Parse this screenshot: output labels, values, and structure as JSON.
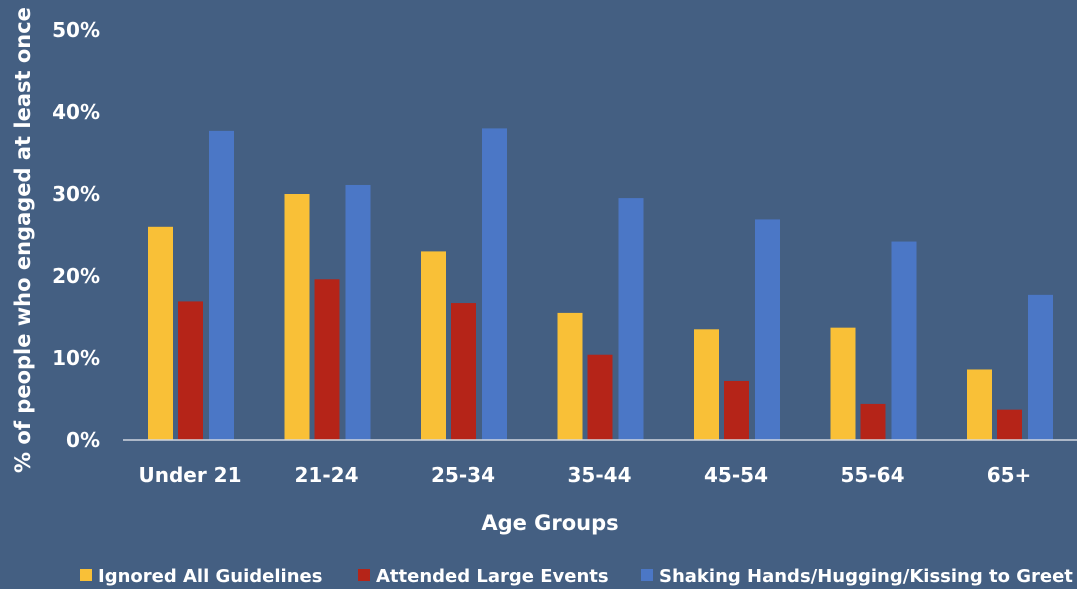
{
  "chart_data": {
    "type": "bar",
    "title": "",
    "xlabel": "Age Groups",
    "ylabel": "% of people who engaged at least once",
    "categories": [
      "Under 21",
      "21-24",
      "25-34",
      "35-44",
      "45-54",
      "55-64",
      "65+"
    ],
    "ylim": [
      0,
      50
    ],
    "yticks": [
      "0%",
      "10%",
      "20%",
      "30%",
      "40%",
      "50%"
    ],
    "grid": false,
    "legend_position": "bottom",
    "series": [
      {
        "name": "Ignored All Guidelines",
        "color": "#f9c037",
        "values": [
          26,
          30,
          23,
          15.5,
          13.5,
          13.7,
          8.6
        ]
      },
      {
        "name": "Attended Large Events",
        "color": "#b52418",
        "values": [
          16.9,
          19.6,
          16.7,
          10.4,
          7.2,
          4.4,
          3.7
        ]
      },
      {
        "name": "Shaking Hands/Hugging/Kissing to Greet",
        "color": "#4b77c6",
        "values": [
          37.7,
          31.1,
          38,
          29.5,
          26.9,
          24.2,
          17.7
        ]
      }
    ]
  }
}
